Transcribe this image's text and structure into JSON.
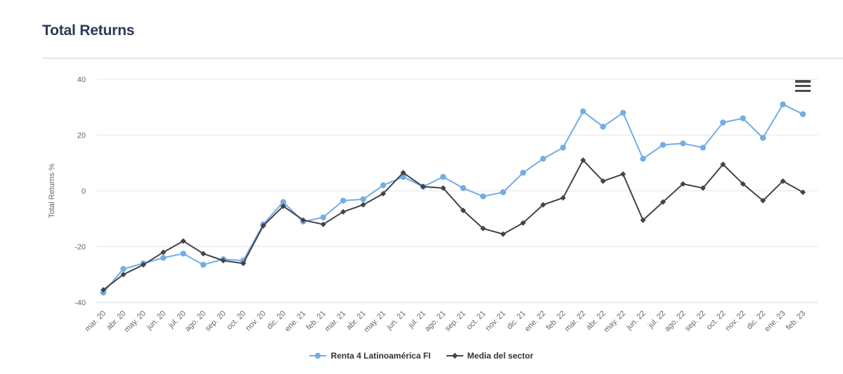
{
  "page": {
    "title": "Total Returns"
  },
  "icons": {
    "context_menu": "hamburger-icon"
  },
  "colors": {
    "title": "#2b3a55",
    "axis_label": "#666666",
    "grid": "#e6e6e6",
    "axis_line": "#ccd6eb",
    "legend_text": "#333333",
    "divider": "#dfe5ec",
    "burger": "#4d4d4d"
  },
  "chart_data": {
    "type": "line",
    "title": "Total Returns",
    "xlabel": "",
    "ylabel": "Total Returns %",
    "ylim": [
      -40,
      40
    ],
    "yticks": [
      40,
      20,
      0,
      -20,
      -40
    ],
    "grid": true,
    "legend_position": "bottom-center",
    "categories": [
      "mar. 20",
      "abr. 20",
      "may. 20",
      "jun. 20",
      "jul. 20",
      "ago. 20",
      "sep. 20",
      "oct. 20",
      "nov. 20",
      "dic. 20",
      "ene. 21",
      "feb. 21",
      "mar. 21",
      "abr. 21",
      "may. 21",
      "jun. 21",
      "jul. 21",
      "ago. 21",
      "sep. 21",
      "oct. 21",
      "nov. 21",
      "dic. 21",
      "ene. 22",
      "feb. 22",
      "mar. 22",
      "abr. 22",
      "may. 22",
      "jun. 22",
      "jul. 22",
      "ago. 22",
      "sep. 22",
      "oct. 22",
      "nov. 22",
      "dic. 22",
      "ene. 23",
      "feb. 23"
    ],
    "series": [
      {
        "name": "Renta 4 Latinoamérica FI",
        "color": "#73ade5",
        "marker": "circle",
        "values": [
          -36.5,
          -28,
          -26,
          -24,
          -22.5,
          -26.5,
          -24.5,
          -25,
          -12,
          -4,
          -11,
          -9.5,
          -3.5,
          -3,
          2,
          5,
          1.5,
          5,
          1,
          -2,
          -0.5,
          6.5,
          11.5,
          15.5,
          28.5,
          23,
          28,
          11.5,
          16.5,
          17,
          15.5,
          24.5,
          26,
          19,
          31,
          27.5
        ]
      },
      {
        "name": "Media del sector",
        "color": "#434348",
        "marker": "diamond",
        "values": [
          -35.5,
          -30,
          -26.5,
          -22,
          -18,
          -22.5,
          -25,
          -26,
          -12.5,
          -5.5,
          -10.5,
          -12,
          -7.5,
          -5,
          -1,
          6.5,
          1.5,
          1,
          -7,
          -13.5,
          -15.5,
          -11.5,
          -5,
          -2.5,
          11,
          3.5,
          6,
          -10.5,
          -4,
          2.5,
          1,
          9.5,
          2.5,
          -3.5,
          3.5,
          -0.5
        ]
      }
    ]
  }
}
